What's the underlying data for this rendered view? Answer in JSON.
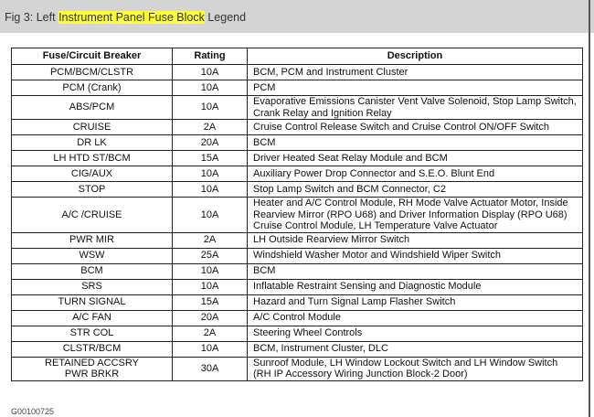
{
  "title": {
    "prefix": "Fig 3: Left ",
    "highlight": "Instrument Panel Fuse Block",
    "suffix": " Legend"
  },
  "headers": [
    "Fuse/Circuit Breaker",
    "Rating",
    "Description"
  ],
  "rows": [
    [
      "PCM/BCM/CLSTR",
      "10A",
      "BCM, PCM and Instrument Cluster"
    ],
    [
      "PCM (Crank)",
      "10A",
      "PCM"
    ],
    [
      "ABS/PCM",
      "10A",
      "Evaporative Emissions Canister Vent Valve Solenoid, Stop Lamp Switch, Crank Relay and Ignition Relay"
    ],
    [
      "CRUISE",
      "2A",
      "Cruise Control Release Switch and Cruise Control ON/OFF Switch"
    ],
    [
      "DR LK",
      "20A",
      "BCM"
    ],
    [
      "LH HTD ST/BCM",
      "15A",
      "Driver Heated Seat Relay Module and BCM"
    ],
    [
      "CIG/AUX",
      "10A",
      "Auxiliary Power Drop Connector and S.E.O. Blunt End"
    ],
    [
      "STOP",
      "10A",
      "Stop Lamp Switch and BCM Connector, C2"
    ],
    [
      "A/C /CRUISE",
      "10A",
      "Heater and A/C Control Module, RH Mode Valve Actuator Motor, Inside Rearview Mirror (RPO U68) and Driver Information Display (RPO U68) Cruise Control Module, LH Temperature Valve Actuator"
    ],
    [
      "PWR MIR",
      "2A",
      "LH Outside Rearview Mirror Switch"
    ],
    [
      "WSW",
      "25A",
      "Windshield Washer Motor and Windshield Wiper Switch"
    ],
    [
      "BCM",
      "10A",
      "BCM"
    ],
    [
      "SRS",
      "10A",
      "Inflatable Restraint Sensing and Diagnostic Module"
    ],
    [
      "TURN SIGNAL",
      "15A",
      "Hazard and Turn Signal Lamp Flasher Switch"
    ],
    [
      "A/C FAN",
      "20A",
      "A/C Control Module"
    ],
    [
      "STR COL",
      "2A",
      "Steering Wheel Controls"
    ],
    [
      "CLSTR/BCM",
      "10A",
      "BCM, Instrument Cluster, DLC"
    ],
    [
      "RETAINED ACCSRY PWR BRKR",
      "30A",
      "Sunroof Module, LH Window Lockout Switch and LH Window Switch (RH IP Accessory Wiring Junction Block-2 Door)"
    ]
  ],
  "caption": "G00100725"
}
